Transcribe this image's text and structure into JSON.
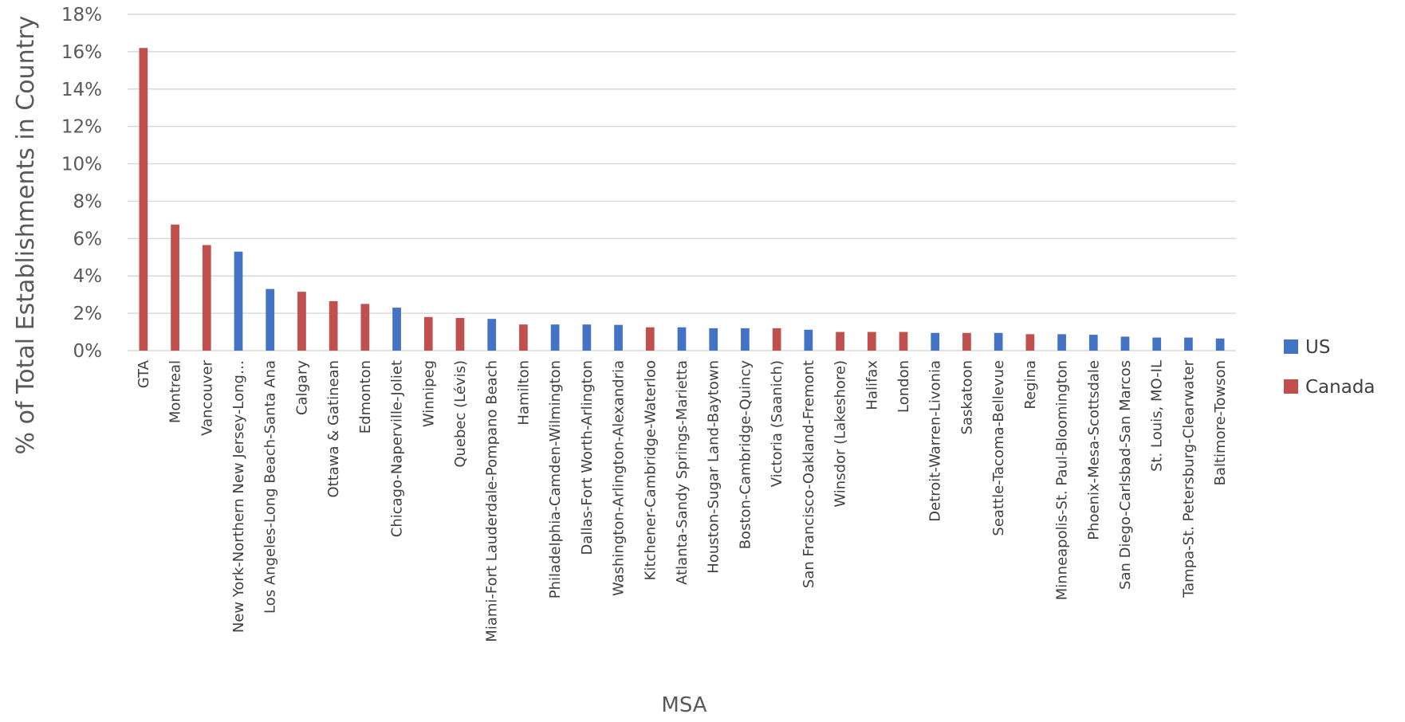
{
  "chart_data": {
    "type": "bar",
    "title": "",
    "xlabel": "MSA",
    "ylabel": "% of Total Establishments in Country",
    "ylim": [
      0,
      18
    ],
    "yticks": [
      "0%",
      "2%",
      "4%",
      "6%",
      "8%",
      "10%",
      "12%",
      "14%",
      "16%",
      "18%"
    ],
    "grid": true,
    "legend_position": "right",
    "colors": {
      "US": "#4472C4",
      "Canada": "#C0504D"
    },
    "series": [
      {
        "name": "US",
        "color": "#4472C4"
      },
      {
        "name": "Canada",
        "color": "#C0504D"
      }
    ],
    "bars": [
      {
        "label": "GTA",
        "series": "Canada",
        "value": 16.2
      },
      {
        "label": "Montreal",
        "series": "Canada",
        "value": 6.75
      },
      {
        "label": "Vancouver",
        "series": "Canada",
        "value": 5.65
      },
      {
        "label": "New York-Northern New Jersey-Long…",
        "series": "US",
        "value": 5.3
      },
      {
        "label": "Los Angeles-Long Beach-Santa Ana",
        "series": "US",
        "value": 3.3
      },
      {
        "label": "Calgary",
        "series": "Canada",
        "value": 3.15
      },
      {
        "label": "Ottawa & Gatinean",
        "series": "Canada",
        "value": 2.65
      },
      {
        "label": "Edmonton",
        "series": "Canada",
        "value": 2.5
      },
      {
        "label": "Chicago-Naperville-Joliet",
        "series": "US",
        "value": 2.3
      },
      {
        "label": "Winnipeg",
        "series": "Canada",
        "value": 1.8
      },
      {
        "label": "Quebec (Lévis)",
        "series": "Canada",
        "value": 1.75
      },
      {
        "label": "Miami-Fort Lauderdale-Pompano Beach",
        "series": "US",
        "value": 1.7
      },
      {
        "label": "Hamilton",
        "series": "Canada",
        "value": 1.4
      },
      {
        "label": "Philadelphia-Camden-Wilmington",
        "series": "US",
        "value": 1.4
      },
      {
        "label": "Dallas-Fort Worth-Arlington",
        "series": "US",
        "value": 1.4
      },
      {
        "label": "Washington-Arlington-Alexandria",
        "series": "US",
        "value": 1.38
      },
      {
        "label": "Kitchener-Cambridge-Waterloo",
        "series": "Canada",
        "value": 1.25
      },
      {
        "label": "Atlanta-Sandy Springs-Marietta",
        "series": "US",
        "value": 1.25
      },
      {
        "label": "Houston-Sugar Land-Baytown",
        "series": "US",
        "value": 1.2
      },
      {
        "label": "Boston-Cambridge-Quincy",
        "series": "US",
        "value": 1.2
      },
      {
        "label": "Victoria (Saanich)",
        "series": "Canada",
        "value": 1.2
      },
      {
        "label": "San Francisco-Oakland-Fremont",
        "series": "US",
        "value": 1.12
      },
      {
        "label": "Winsdor (Lakeshore)",
        "series": "Canada",
        "value": 1.0
      },
      {
        "label": "Halifax",
        "series": "Canada",
        "value": 1.0
      },
      {
        "label": "London",
        "series": "Canada",
        "value": 1.0
      },
      {
        "label": "Detroit-Warren-Livonia",
        "series": "US",
        "value": 0.95
      },
      {
        "label": "Saskatoon",
        "series": "Canada",
        "value": 0.95
      },
      {
        "label": "Seattle-Tacoma-Bellevue",
        "series": "US",
        "value": 0.95
      },
      {
        "label": "Regina",
        "series": "Canada",
        "value": 0.88
      },
      {
        "label": "Minneapolis-St. Paul-Bloomington",
        "series": "US",
        "value": 0.88
      },
      {
        "label": "Phoenix-Mesa-Scottsdale",
        "series": "US",
        "value": 0.85
      },
      {
        "label": "San Diego-Carlsbad-San Marcos",
        "series": "US",
        "value": 0.75
      },
      {
        "label": "St. Louis, MO-IL",
        "series": "US",
        "value": 0.7
      },
      {
        "label": "Tampa-St. Petersburg-Clearwater",
        "series": "US",
        "value": 0.7
      },
      {
        "label": "Baltimore-Towson",
        "series": "US",
        "value": 0.65
      }
    ]
  }
}
